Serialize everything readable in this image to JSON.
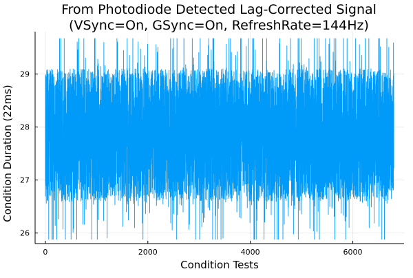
{
  "chart_data": {
    "type": "line",
    "title": "From Photodiode Detected Lag-Corrected Signal",
    "subtitle": "(VSync=On, GSync=On, RefreshRate=144Hz)",
    "xlabel": "Condition Tests",
    "ylabel": "Condition Duration (22ms)",
    "xlim": [
      -200,
      7000
    ],
    "ylim": [
      25.8,
      29.8
    ],
    "x_ticks": [
      0,
      2000,
      4000,
      6000
    ],
    "x_tick_labels": [
      "0",
      "2000",
      "4000",
      "6000"
    ],
    "y_ticks": [
      26,
      27,
      28,
      29
    ],
    "y_tick_labels": [
      "26",
      "27",
      "28",
      "29"
    ],
    "grid": true,
    "legend": "none",
    "series": [
      {
        "color": "#009af9",
        "n_points": 6800,
        "x_range": [
          1,
          6800
        ],
        "center": 27.8,
        "dense_band": [
          26.6,
          29.1
        ],
        "extremes": {
          "max": 29.67,
          "min": 25.88
        },
        "values_sample_note": "",
        "values_sample": [
          27.4,
          28.9,
          26.5,
          28.2,
          27.0,
          29.2,
          26.7,
          28.6,
          27.9,
          26.4,
          29.0,
          27.2,
          28.4,
          26.9,
          28.8,
          27.6,
          26.3,
          29.3,
          27.1,
          28.0
        ]
      }
    ]
  }
}
